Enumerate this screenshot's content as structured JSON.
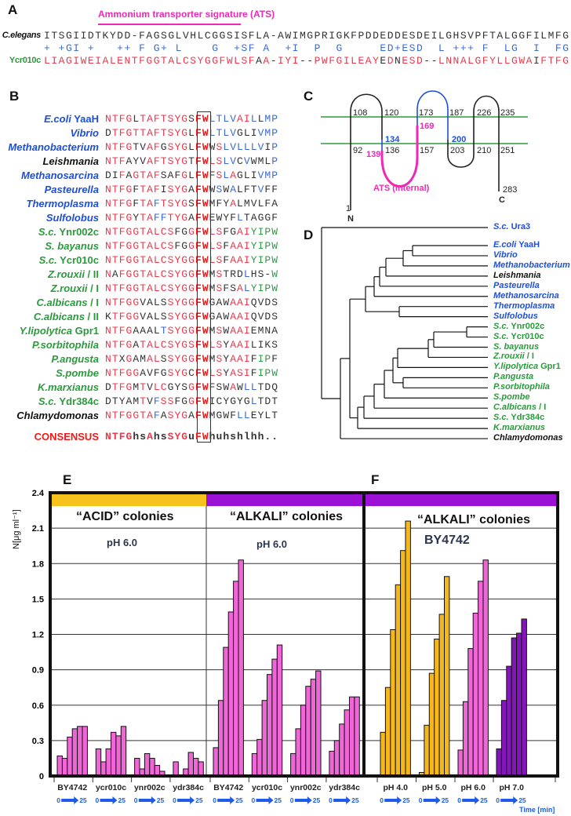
{
  "panel_letters": {
    "a": "A",
    "b": "B",
    "c": "C",
    "d": "D",
    "e": "E",
    "f": "F"
  },
  "panel_a": {
    "title": "Ammonium transporter signature (ATS)",
    "title_color": "#ee2ab4",
    "rows": [
      {
        "name": "C.elegans",
        "seq": "ITSGIIDTKYDD-FAGSGLVHLCGGSISFLA-AWIMGPRIGKFPDDEDDESDEILGHSVPFTALGGFILMFG",
        "mask": "kkkkkkkkkkkkkkkkkkkkkkkkkkkkkkkkkkkkkkkkkkkkkkkkkkkkkkkkkkkkkkkkkkkkkkkk"
      },
      {
        "name": "",
        "seq": "+ +GI +   ++ F G+ L    G  +SF A  +I  P  G     ED+ESD  L +++ F  LG  I  FG",
        "mask": "bbbbbbbbbbbbbbbbbbbbbbbbbbbbbbbbbbbbbbbbbbbbbbbbbbbbbbbbbbbbbbbbbbbbbbbb"
      },
      {
        "name": "Ycr010c",
        "seq": "LIAGIWEIALENTFGGTALCSYGGFWLSFAA-IYI--PWFGILEAYEDNESD--LNNALGFYLLGWAIFTFG",
        "mask": "rrrrrrrrrrrrrrrrrrrrrrrrrrrrrkrkrrrkkrrrrrrrrrkrkrrrkkrrrrrrrrrrrrrkrrrr"
      }
    ]
  },
  "panel_b": {
    "rows": [
      {
        "it": "E.coli",
        "pl": " YaaH",
        "color": "blue",
        "seq": "NTFGLTAFTSYGSFWLTLVAILLMP",
        "mask": "rrrrkrrrrrrrkFFbbbbrrbkbb"
      },
      {
        "it": "Vibrio",
        "pl": "",
        "color": "blue",
        "seq": "DTFGTTAFTSYGLFWLTLVGLIVMP",
        "mask": "krrrrrrrrrrrkFFbbbbkkkbbb"
      },
      {
        "it": "Methanobacterium",
        "pl": "",
        "color": "blue",
        "seq": "NTFGTVAFGSYGLFWWSLVLLLVIP",
        "mask": "rrrrkkrrkrrrkFFkrbbbbbbkb"
      },
      {
        "it": "Leishmania",
        "pl": "",
        "color": "black",
        "seq": "NTFAYVAFTSYGTFWLSLVCVWMLP",
        "mask": "rrrkkkrrrrrrkFFrrbbkbkkkb"
      },
      {
        "it": "Methanosarcina",
        "pl": "",
        "color": "blue",
        "seq": "DIFAGTAFSAFGLFWFSLAGLIVMP",
        "mask": "kkrkrrrrkkkrkFFkrbrkkkbbb"
      },
      {
        "it": "Pasteurella",
        "pl": "",
        "color": "blue",
        "seq": "NTFGFTAFISYGAFWWSWALFTVFF",
        "mask": "rrrrkrrrkrrrkFFkbkbkkkbkk"
      },
      {
        "it": "Thermoplasma",
        "pl": "",
        "color": "blue",
        "seq": "NTFGFTAFTSYGSFWMFYALMVLFA",
        "mask": "rrrrkrrbrrrrkFFkkkrkkkkkk"
      },
      {
        "it": "Sulfolobus",
        "pl": "",
        "color": "blue",
        "seq": "NTFGYTAFFTYGAFWEWYFLTAGGF",
        "mask": "rrrrkrrbbrrrkFFkkkkbkkkkk"
      },
      {
        "it": "S.c.",
        "pl": " Ynr002c",
        "color": "green",
        "seq": "NTFGGTALCSFGGFWLSFGAIYIPW",
        "mask": "rrrrrrrrrrkkrFFrrkkrrgggg"
      },
      {
        "it": "S. bayanus",
        "pl": "",
        "color": "green",
        "seq": "NTFGGTALCSFGGFWLSFAAIYIPW",
        "mask": "rrrrrrrrrrkkrFFrrkrrrgggg"
      },
      {
        "it": "S.c.",
        "pl": " Ycr010c",
        "color": "green",
        "seq": "NTFGGTALCSYGGFWLSFAAIYIPW",
        "mask": "rrrrrrrrrrrrrFFrrkrrrgggg"
      },
      {
        "it": "Z.rouxii",
        "pl": " / II",
        "color": "green",
        "seq": "NAFGGTALCSYGGFWMSTRDLHS-W",
        "mask": "rkrrrrrrrrrrrFFkrkkkbkkkg"
      },
      {
        "it": "Z.rouxii",
        "pl": " / I",
        "color": "green",
        "seq": "NTFGGTALCSYGGFWMSFSALYIPW",
        "mask": "rrrrrrrrrrrrrFFkrkkrbgggg"
      },
      {
        "it": "C.albicans",
        "pl": " / I",
        "color": "green",
        "seq": "NTFGGVALSSYGGFWGAWAAIQVDS",
        "mask": "rrrrrkkkkrrrrFFkkkrrrkkkk"
      },
      {
        "it": "C.albicans",
        "pl": " / II",
        "color": "green",
        "seq": "KTFGGVALSSYGGFWGAWAAIQVDS",
        "mask": "krrrrkkkkrrrrFFkkkrrrkkkk"
      },
      {
        "it": "Y.lipolytica",
        "pl": " Gpr1",
        "color": "green",
        "seq": "NTFGAAALTSYGGFWMSWAAIEMNA",
        "mask": "rrrrkkkkbrrrrFFkrkrrrkkkk"
      },
      {
        "it": "P.sorbitophila",
        "pl": "",
        "color": "green",
        "seq": "NTFGATALCSYGSFWLSYAAILIKS",
        "mask": "rrrrkrrrrrrrrFFrrkrrrkkkk"
      },
      {
        "it": "P.angusta",
        "pl": "",
        "color": "green",
        "seq": "NTXGAMALSSYGGFWMSYAAIFIPF",
        "mask": "rrkrkkrrkrrrrFFkrkrrrkggk"
      },
      {
        "it": "S.pombe",
        "pl": "",
        "color": "green",
        "seq": "NTFGGAVFGSYGCFWLSYASIFIPW",
        "mask": "rrrrrkkkkrrrkFFrrkrrrkggg"
      },
      {
        "it": "K.marxianus",
        "pl": "",
        "color": "green",
        "seq": "DTFGMTVLCGYSGFWFSWAWLLTDQ",
        "mask": "krrrkrkrrkkkrFFkkkrkbbkkk"
      },
      {
        "it": "S.c.",
        "pl": " Ydr384c",
        "color": "green",
        "seq": "DTYAMTVFSSFGGFWICYGYGLTDT",
        "mask": "kkkkkrkbrrkkrFFkkkkkkbkkk"
      },
      {
        "it": "Chlamydomonas",
        "pl": "",
        "color": "black",
        "seq": "NTFGGTAFASYGAFWMGWFLLEYLT",
        "mask": "rrrrrrrbkrrrkFFkkkkbbkkkk"
      }
    ],
    "consensus": {
      "label": "CONSENSUS",
      "seq": "NTFGhsAhsSYGuFWhuhshlhh..",
      "mask": "rrrrkkrkkrrrkFFkkkkkkkkkk"
    }
  },
  "panel_c": {
    "top_labels": [
      "108",
      "120",
      "173",
      "187",
      "226",
      "235"
    ],
    "bottom_labels": [
      "92",
      "136",
      "157",
      "203",
      "210",
      "251"
    ],
    "blue_labels": [
      "134",
      "200"
    ],
    "pink_labels": [
      "169",
      "139"
    ],
    "ats_label": "ATS (internal)",
    "start": "1",
    "n_term": "N",
    "end": "283",
    "c_term": "C"
  },
  "panel_d": {
    "leaves": [
      {
        "it": "S.c.",
        "pl": " Ura3",
        "color": "blue"
      },
      {
        "it": "E.coli",
        "pl": " YaaH",
        "color": "blue"
      },
      {
        "it": "Vibrio",
        "pl": "",
        "color": "blue"
      },
      {
        "it": "Methanobacterium",
        "pl": "",
        "color": "blue"
      },
      {
        "it": "Leishmania",
        "pl": "",
        "color": "black"
      },
      {
        "it": "Pasteurella",
        "pl": "",
        "color": "blue"
      },
      {
        "it": "Methanosarcina",
        "pl": "",
        "color": "blue"
      },
      {
        "it": "Thermoplasma",
        "pl": "",
        "color": "blue"
      },
      {
        "it": "Sulfolobus",
        "pl": "",
        "color": "blue"
      },
      {
        "it": "S.c.",
        "pl": " Ynr002c",
        "color": "green"
      },
      {
        "it": "S.c.",
        "pl": " Ycr010c",
        "color": "green"
      },
      {
        "it": "S. bayanus",
        "pl": "",
        "color": "green"
      },
      {
        "it": "Z.rouxii",
        "pl": " / I",
        "color": "green"
      },
      {
        "it": "Y.lipolytica",
        "pl": " Gpr1",
        "color": "green"
      },
      {
        "it": "P.angusta",
        "pl": "",
        "color": "green"
      },
      {
        "it": "P.sorbitophila",
        "pl": "",
        "color": "green"
      },
      {
        "it": "S.pombe",
        "pl": "",
        "color": "green"
      },
      {
        "it": "C.albicans",
        "pl": " / I",
        "color": "green"
      },
      {
        "it": "S.c.",
        "pl": " Ydr384c",
        "color": "green"
      },
      {
        "it": "K.marxianus",
        "pl": "",
        "color": "green"
      },
      {
        "it": "Chlamydomonas",
        "pl": "",
        "color": "black"
      }
    ]
  },
  "chart_data": {
    "type": "bar",
    "ylabel": "N[μg ml⁻¹]",
    "ylim": [
      0,
      2.4
    ],
    "yticks": [
      "0",
      "0.3",
      "0.6",
      "0.9",
      "1.2",
      "1.5",
      "1.8",
      "2.1",
      "2.4"
    ],
    "grid": true,
    "time_axis": {
      "start": "0",
      "end": "25",
      "label": "Time [min]"
    },
    "colors": {
      "acid_band": "#f8c21c",
      "alkali_band": "#9b12d6",
      "pink": "#f065d8",
      "gold": "#f4b81c",
      "purple": "#8316b8"
    },
    "panels": [
      {
        "letter": "E",
        "sections": [
          {
            "title": "“ACID” colonies",
            "subtitle": "pH 6.0",
            "band": "acid_band",
            "groups": [
              {
                "label": "BY4742",
                "color": "pink",
                "values": [
                  0.17,
                  0.15,
                  0.33,
                  0.4,
                  0.42,
                  0.42
                ]
              },
              {
                "label": "ycr010c",
                "color": "pink",
                "values": [
                  0.23,
                  0.12,
                  0.23,
                  0.37,
                  0.34,
                  0.42
                ]
              },
              {
                "label": "ynr002c",
                "color": "pink",
                "values": [
                  0.15,
                  0.06,
                  0.19,
                  0.15,
                  0.09,
                  0.04
                ]
              },
              {
                "label": "ydr384c",
                "color": "pink",
                "values": [
                  0.12,
                  0.01,
                  0.06,
                  0.2,
                  0.15,
                  0.12
                ]
              }
            ]
          },
          {
            "title": "“ALKALI” colonies",
            "subtitle": "pH 6.0",
            "band": "alkali_band",
            "groups": [
              {
                "label": "BY4742",
                "color": "pink",
                "values": [
                  0.24,
                  0.64,
                  1.09,
                  1.39,
                  1.65,
                  1.83
                ]
              },
              {
                "label": "ycr010c",
                "color": "pink",
                "values": [
                  0.19,
                  0.31,
                  0.64,
                  0.86,
                  0.99,
                  1.11
                ]
              },
              {
                "label": "ynr002c",
                "color": "pink",
                "values": [
                  0.19,
                  0.4,
                  0.6,
                  0.76,
                  0.82,
                  0.89
                ]
              },
              {
                "label": "ydr384c",
                "color": "pink",
                "values": [
                  0.21,
                  0.3,
                  0.44,
                  0.56,
                  0.67,
                  0.67
                ]
              }
            ]
          }
        ]
      },
      {
        "letter": "F",
        "sections": [
          {
            "title": "“ALKALI” colonies",
            "subtitle": "BY4742",
            "band": "alkali_band",
            "groups": [
              {
                "label": "pH 4.0",
                "color": "gold",
                "values": [
                  0.37,
                  0.75,
                  1.24,
                  1.62,
                  1.91,
                  2.16
                ]
              },
              {
                "label": "pH 5.0",
                "color": "gold",
                "values": [
                  0.03,
                  0.43,
                  0.87,
                  1.16,
                  1.37,
                  1.69
                ]
              },
              {
                "label": "pH 6.0",
                "color": "pink",
                "values": [
                  0.22,
                  0.63,
                  1.08,
                  1.38,
                  1.65,
                  1.83
                ]
              },
              {
                "label": "pH 7.0",
                "color": "purple",
                "values": [
                  0.23,
                  0.64,
                  0.93,
                  1.17,
                  1.21,
                  1.33
                ]
              }
            ]
          }
        ]
      }
    ]
  }
}
